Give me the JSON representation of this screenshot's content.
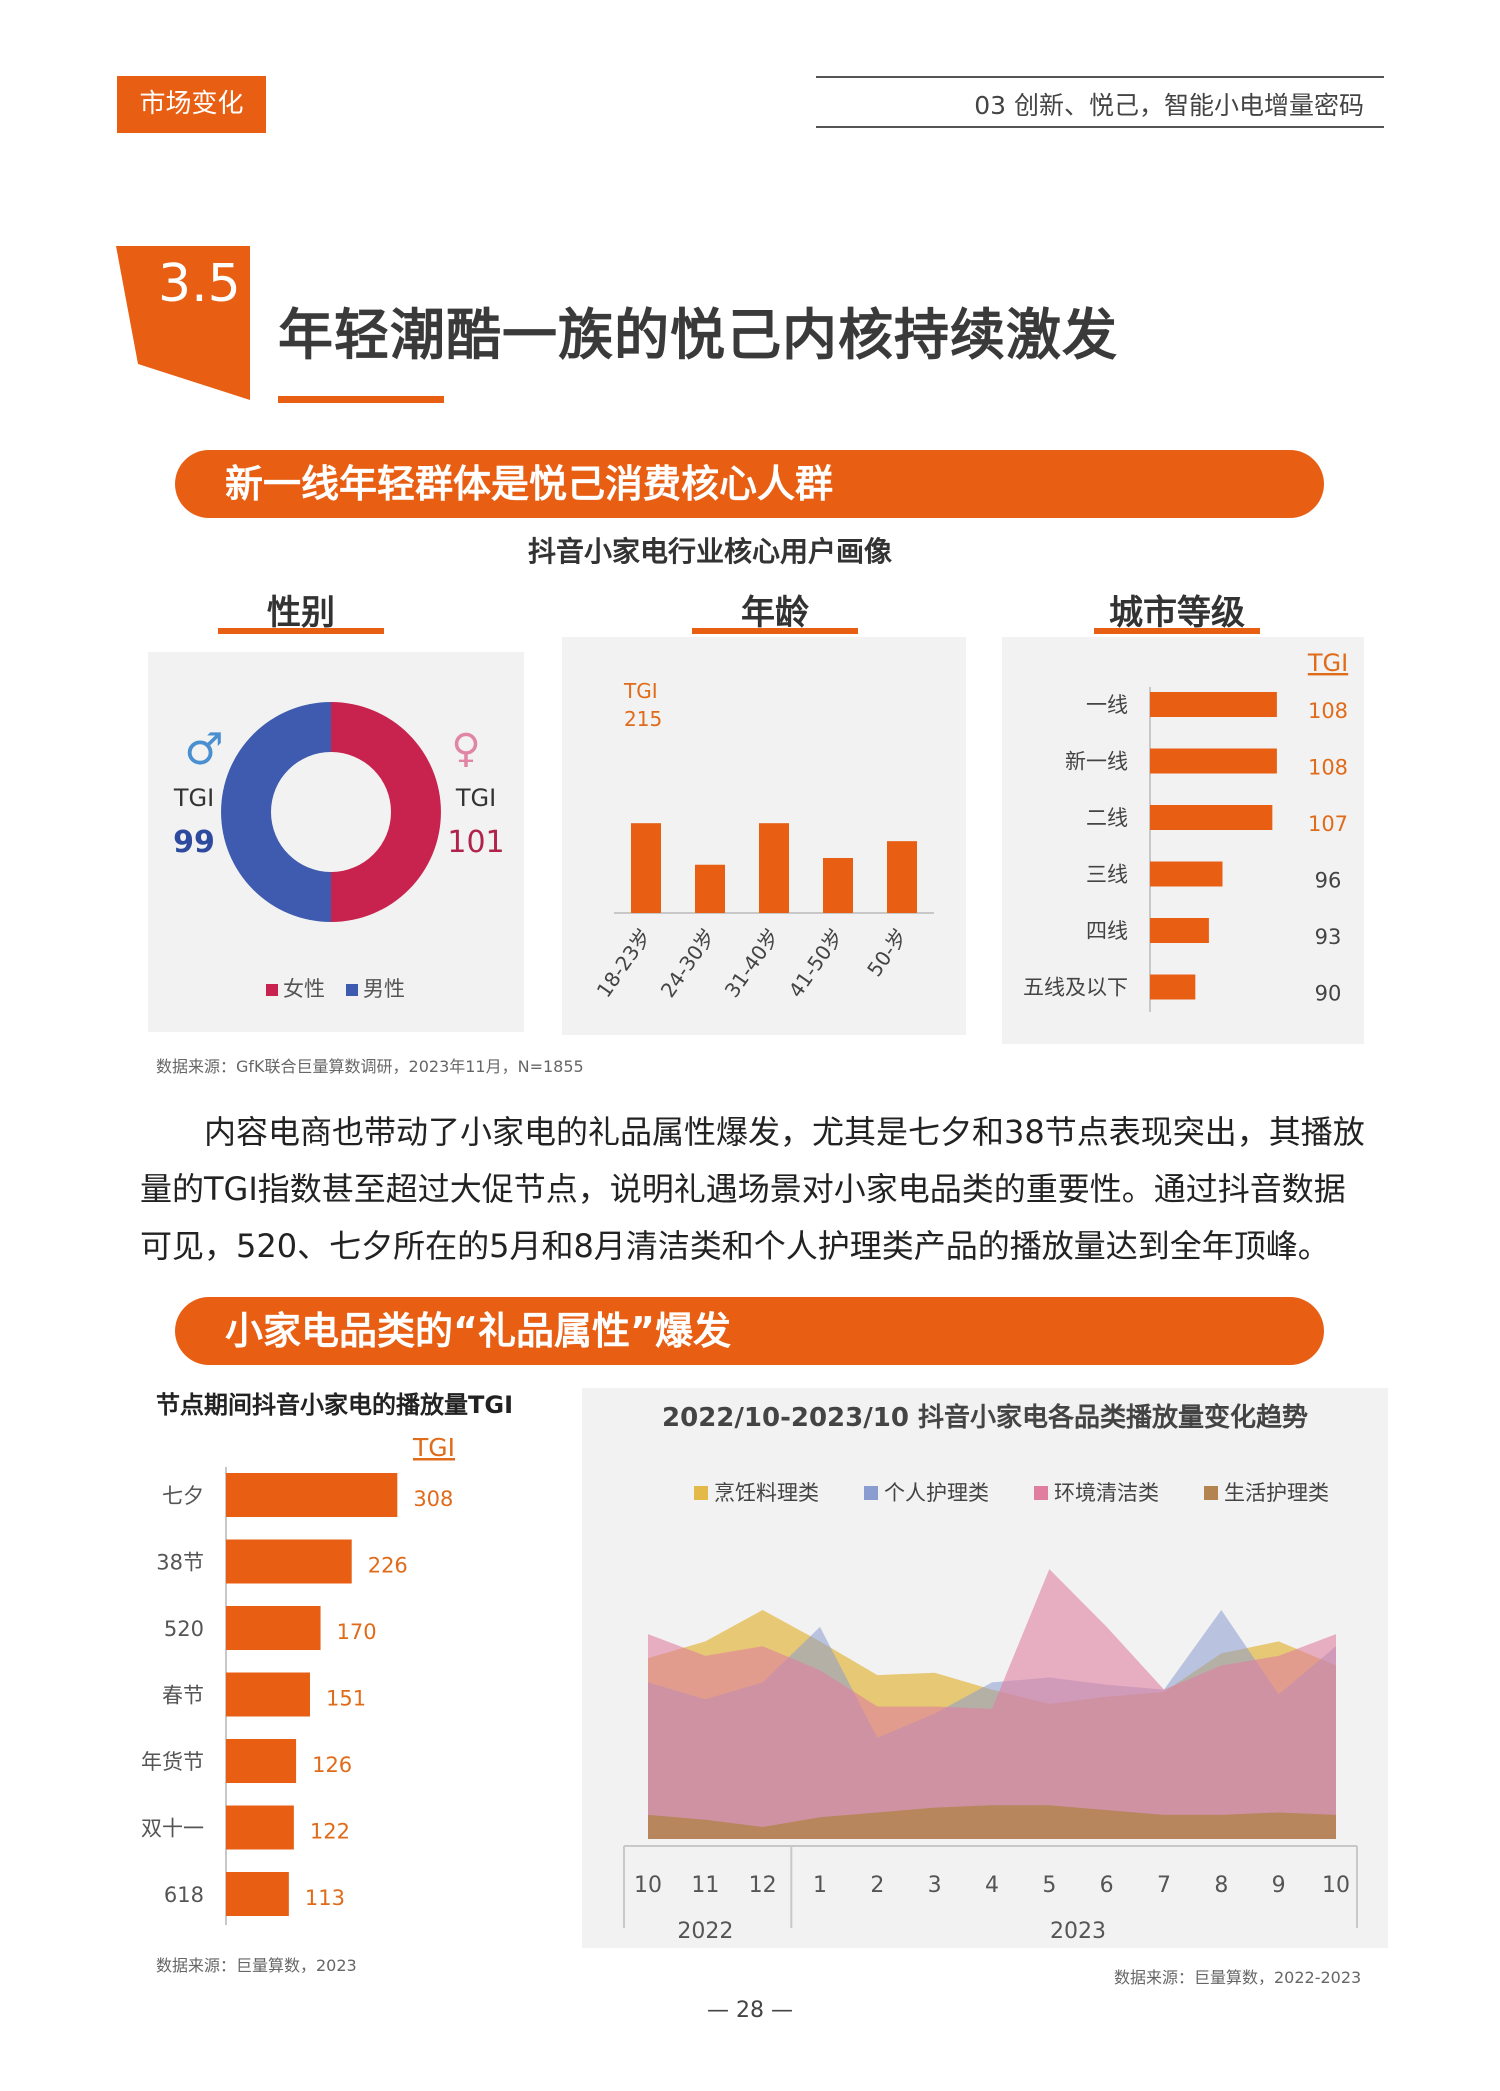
{
  "header": {
    "tag": "市场变化",
    "chapter": "03 创新、悦己，智能小电增量密码"
  },
  "section": {
    "number": "3.5",
    "title": "年轻潮酷一族的悦己内核持续激发"
  },
  "block1": {
    "banner": "新一线年轻群体是悦己消费核心人群",
    "chart_title": "抖音小家电行业核心用户画像",
    "panels": {
      "gender": "性别",
      "age": "年龄",
      "city": "城市等级"
    },
    "source": "数据来源：GfK联合巨量算数调研，2023年11月，N=1855"
  },
  "paragraph": "内容电商也带动了小家电的礼品属性爆发，尤其是七夕和38节点表现突出，其播放量的TGI指数甚至超过大促节点，说明礼遇场景对小家电品类的重要性。通过抖音数据可见，520、七夕所在的5月和8月清洁类和个人护理类产品的播放量达到全年顶峰。",
  "block2": {
    "banner": "小家电品类的“礼品属性”爆发",
    "left_source": "数据来源：巨量算数，2023",
    "right_source": "数据来源：巨量算数，2022-2023"
  },
  "page_number": "— 28 —",
  "chart_data": [
    {
      "type": "pie",
      "donut": true,
      "categories": [
        "女性",
        "男性"
      ],
      "values": [
        50,
        50
      ],
      "colors": [
        "#c8234f",
        "#3e5bb0"
      ],
      "annotations": {
        "male": {
          "symbol": "♂",
          "label": "TGI",
          "value": "99",
          "color": "#2d4a9e"
        },
        "female": {
          "symbol": "♀",
          "label": "TGI",
          "value": "101",
          "color": "#b0244b"
        }
      },
      "legend": "bottom"
    },
    {
      "type": "bar",
      "orientation": "vertical",
      "axis_label": "TGI",
      "axis_value": "215",
      "categories": [
        "18-23岁",
        "24-30岁",
        "31-40岁",
        "41-50岁",
        "50-岁"
      ],
      "values": [
        140,
        103,
        140,
        109,
        124
      ],
      "ylim": [
        60,
        215
      ],
      "color": "#e85f14"
    },
    {
      "type": "bar",
      "orientation": "horizontal",
      "header": "TGI",
      "categories": [
        "一线",
        "新一线",
        "二线",
        "三线",
        "四线",
        "五线及以下"
      ],
      "values": [
        108,
        108,
        107,
        96,
        93,
        90
      ],
      "value_colors": [
        "#e06b1a",
        "#e06b1a",
        "#e06b1a",
        "#444444",
        "#444444",
        "#444444"
      ],
      "xlim": [
        80,
        112
      ],
      "color": "#e85f14"
    },
    {
      "type": "bar",
      "orientation": "horizontal",
      "title": "节点期间抖音小家电的播放量TGI",
      "header": "TGI",
      "categories": [
        "七夕",
        "38节",
        "520",
        "春节",
        "年货节",
        "双十一",
        "618"
      ],
      "values": [
        308,
        226,
        170,
        151,
        126,
        122,
        113
      ],
      "xlim": [
        0,
        320
      ],
      "color": "#e85f14"
    },
    {
      "type": "area",
      "title": "2022/10-2023/10 抖音小家电各品类播放量变化趋势",
      "x": [
        "10",
        "11",
        "12",
        "1",
        "2",
        "3",
        "4",
        "5",
        "6",
        "7",
        "8",
        "9",
        "10"
      ],
      "year_groups": [
        {
          "label": "2022",
          "span": 3
        },
        {
          "label": "2023",
          "span": 10
        }
      ],
      "legend": "top",
      "ylim": [
        0,
        100
      ],
      "series": [
        {
          "name": "烹饪料理类",
          "color": "#e3b94a",
          "values": [
            75,
            82,
            95,
            82,
            68,
            69,
            62,
            56,
            59,
            61,
            77,
            82,
            72
          ]
        },
        {
          "name": "个人护理类",
          "color": "#8a9dd0",
          "values": [
            65,
            58,
            65,
            88,
            42,
            52,
            65,
            67,
            64,
            62,
            95,
            60,
            80
          ]
        },
        {
          "name": "环境清洁类",
          "color": "#e07ea0",
          "values": [
            85,
            76,
            80,
            70,
            55,
            55,
            54,
            112,
            88,
            62,
            72,
            76,
            85
          ]
        },
        {
          "name": "生活护理类",
          "color": "#b38450",
          "values": [
            10,
            8,
            5,
            9,
            11,
            13,
            14,
            14,
            12,
            10,
            10,
            11,
            10
          ]
        }
      ]
    }
  ]
}
